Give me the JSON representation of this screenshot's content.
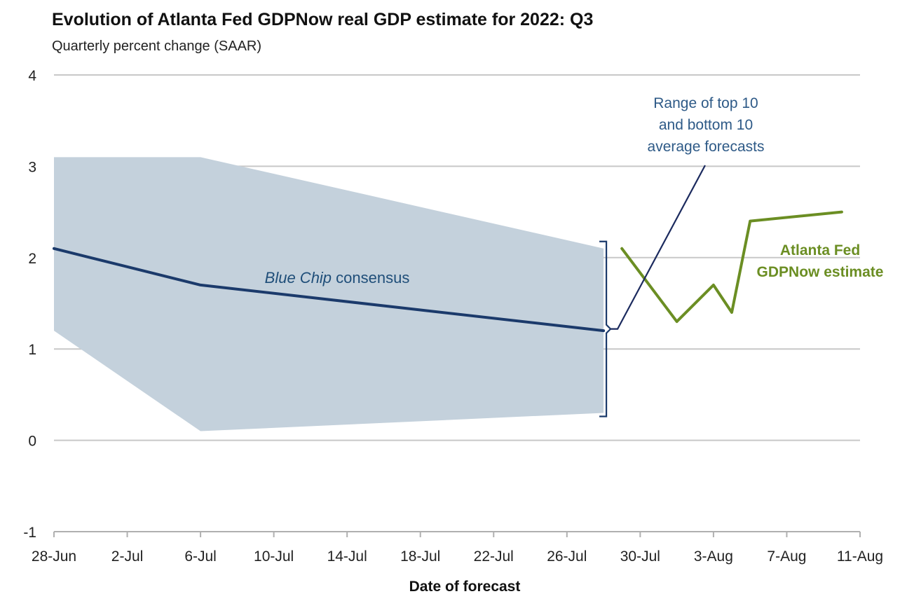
{
  "chart_data": {
    "type": "line",
    "title": "Evolution of Atlanta Fed GDPNow real GDP estimate for 2022: Q3",
    "subtitle": "Quarterly percent change (SAAR)",
    "xlabel": "Date of forecast",
    "ylabel": "",
    "ylim": [
      -1,
      4
    ],
    "xlim": [
      "2022-06-28",
      "2022-08-11"
    ],
    "yticks": [
      -1,
      0,
      1,
      2,
      3,
      4
    ],
    "xticks": [
      {
        "date": "2022-06-28",
        "label": "28-Jun"
      },
      {
        "date": "2022-07-02",
        "label": "2-Jul"
      },
      {
        "date": "2022-07-06",
        "label": "6-Jul"
      },
      {
        "date": "2022-07-10",
        "label": "10-Jul"
      },
      {
        "date": "2022-07-14",
        "label": "14-Jul"
      },
      {
        "date": "2022-07-18",
        "label": "18-Jul"
      },
      {
        "date": "2022-07-22",
        "label": "22-Jul"
      },
      {
        "date": "2022-07-26",
        "label": "26-Jul"
      },
      {
        "date": "2022-07-30",
        "label": "30-Jul"
      },
      {
        "date": "2022-08-03",
        "label": "3-Aug"
      },
      {
        "date": "2022-08-07",
        "label": "7-Aug"
      },
      {
        "date": "2022-08-11",
        "label": "11-Aug"
      }
    ],
    "grid": true,
    "range_band": {
      "label": "Range of top 10 and bottom 10 average forecasts",
      "label_lines": [
        "Range of top 10",
        "and bottom 10",
        "average forecasts"
      ],
      "color": "#c4d1dc",
      "upper": [
        {
          "x": "2022-06-28",
          "y": 3.1
        },
        {
          "x": "2022-07-06",
          "y": 3.1
        },
        {
          "x": "2022-07-28",
          "y": 2.1
        }
      ],
      "lower": [
        {
          "x": "2022-06-28",
          "y": 1.2
        },
        {
          "x": "2022-07-06",
          "y": 0.1
        },
        {
          "x": "2022-07-28",
          "y": 0.3
        }
      ]
    },
    "series": [
      {
        "name": "Blue Chip consensus",
        "label_italic": "Blue Chip",
        "label_rest": " consensus",
        "color": "#1b3a6b",
        "points": [
          {
            "x": "2022-06-28",
            "y": 2.1
          },
          {
            "x": "2022-07-06",
            "y": 1.7
          },
          {
            "x": "2022-07-28",
            "y": 1.2
          }
        ]
      },
      {
        "name": "Atlanta Fed GDPNow estimate",
        "label_lines": [
          "Atlanta Fed",
          "GDPNow estimate"
        ],
        "color": "#6b8e23",
        "points": [
          {
            "x": "2022-07-29",
            "y": 2.1
          },
          {
            "x": "2022-08-01",
            "y": 1.3
          },
          {
            "x": "2022-08-03",
            "y": 1.7
          },
          {
            "x": "2022-08-04",
            "y": 1.4
          },
          {
            "x": "2022-08-05",
            "y": 2.4
          },
          {
            "x": "2022-08-10",
            "y": 2.5
          }
        ]
      }
    ]
  }
}
